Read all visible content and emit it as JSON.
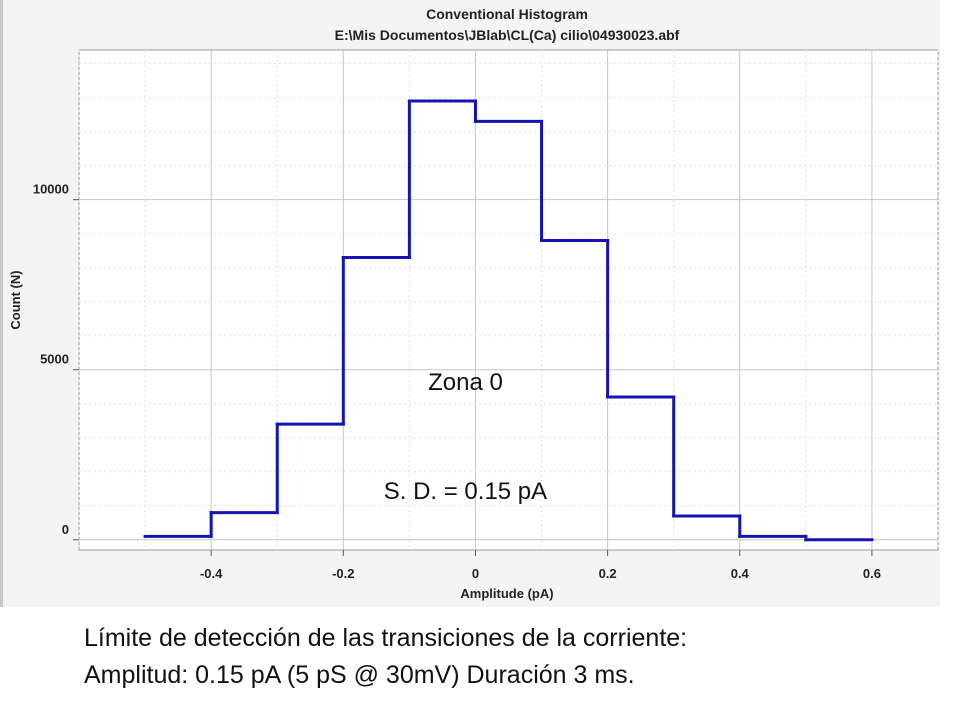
{
  "chart_data": {
    "type": "histogram",
    "title": "Conventional Histogram",
    "subtitle": "E:\\Mis Documentos\\JBlab\\CL(Ca) cilio\\04930023.abf",
    "xlabel": "Amplitude (pA)",
    "ylabel": "Count (N)",
    "xlim": [
      -0.6,
      0.7
    ],
    "ylim": [
      -300,
      14400
    ],
    "x_ticks": [
      -0.4,
      -0.2,
      0,
      0.2,
      0.4,
      0.6
    ],
    "x_tick_labels": [
      "-0.4",
      "-0.2",
      "0",
      "0.2",
      "0.4",
      "0.6"
    ],
    "y_ticks": [
      0,
      5000,
      10000
    ],
    "y_tick_labels": [
      "0",
      "5000",
      "10000"
    ],
    "grid": true,
    "bin_edges": [
      -0.5,
      -0.4,
      -0.3,
      -0.2,
      -0.1,
      0,
      0.1,
      0.2,
      0.3,
      0.4,
      0.5,
      0.6
    ],
    "counts": [
      100,
      800,
      3400,
      8300,
      12900,
      12300,
      8800,
      4200,
      700,
      100,
      0
    ],
    "line_color": "#1414b4",
    "annotations": [
      {
        "text": "Zona 0",
        "x": 0.0,
        "y": 4400
      },
      {
        "text": "S. D. = 0.15 pA",
        "x": 0.0,
        "y": 1200
      }
    ]
  },
  "caption": {
    "line1": "Límite de detección de las transiciones de la corriente:",
    "line2": "Amplitud:  0.15 pA (5 pS @ 30mV) Duración 3 ms."
  }
}
